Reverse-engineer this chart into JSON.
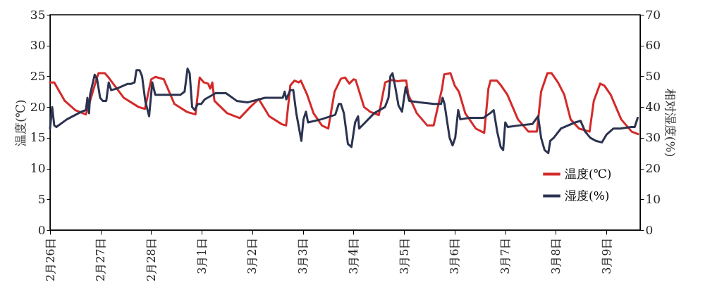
{
  "chart_data": {
    "type": "line",
    "ylabel": "温度(℃)",
    "y2label": "相对湿度(%)",
    "xlim": [
      "--02-26T00:00",
      "--03-09T16:00"
    ],
    "ylim": [
      0,
      35
    ],
    "yticks": [
      0,
      5,
      10,
      15,
      20,
      25,
      30,
      35
    ],
    "y2lim": [
      0,
      70
    ],
    "y2ticks": [
      0,
      10,
      20,
      30,
      40,
      50,
      60,
      70
    ],
    "xticks": [
      {
        "value": "--02-26",
        "label": "2月26日"
      },
      {
        "value": "--02-27",
        "label": "2月27日"
      },
      {
        "value": "--02-28",
        "label": "2月28日"
      },
      {
        "value": "--03-01",
        "label": "3月1日"
      },
      {
        "value": "--03-02",
        "label": "3月2日"
      },
      {
        "value": "--03-03",
        "label": "3月3日"
      },
      {
        "value": "--03-04",
        "label": "3月4日"
      },
      {
        "value": "--03-05",
        "label": "3月5日"
      },
      {
        "value": "--03-06",
        "label": "3月6日"
      },
      {
        "value": "--03-07",
        "label": "3月7日"
      },
      {
        "value": "--03-08",
        "label": "3月8日"
      },
      {
        "value": "--03-09",
        "label": "3月9日"
      }
    ],
    "legend": "bottom right",
    "line_style": "solid",
    "series": [
      {
        "name": "温度(℃)",
        "color": "#d42a2a",
        "x": [
          "--02-26T00:00",
          "--02-26T02:00",
          "--02-26T07:00",
          "--02-26T12:00",
          "--02-26T17:00",
          "--02-26T19:00",
          "--02-26T22:00",
          "--02-26T23:00",
          "--02-27T02:00",
          "--02-27T04:00",
          "--02-27T11:00",
          "--02-27T18:00",
          "--02-27T21:00",
          "--02-28T00:00",
          "--02-28T02:00",
          "--02-28T06:00",
          "--02-28T11:00",
          "--02-28T17:00",
          "--02-28T21:00",
          "--02-28T23:00",
          "--03-01T01:00",
          "--03-01T03:00",
          "--03-01T04:00",
          "--03-01T05:00",
          "--03-01T06:00",
          "--03-01T12:00",
          "--03-01T18:00",
          "--03-01T23:00",
          "--03-02T03:00",
          "--03-02T08:00",
          "--03-02T14:00",
          "--03-02T16:00",
          "--03-02T18:00",
          "--03-02T20:00",
          "--03-02T22:00",
          "--03-02T23:00",
          "--03-03T02:00",
          "--03-03T05:00",
          "--03-03T09:00",
          "--03-03T12:00",
          "--03-03T15:00",
          "--03-03T18:00",
          "--03-03T20:00",
          "--03-03T22:00",
          "--03-04T00:00",
          "--03-04T01:00",
          "--03-04T05:00",
          "--03-04T08:00",
          "--03-04T12:00",
          "--03-04T15:00",
          "--03-04T18:00",
          "--03-04T21:00",
          "--03-04T23:00",
          "--03-05T01:00",
          "--03-05T02:00",
          "--03-05T06:00",
          "--03-05T11:00",
          "--03-05T14:00",
          "--03-05T18:00",
          "--03-05T19:00",
          "--03-05T22:00",
          "--03-06T00:00",
          "--03-06T02:00",
          "--03-06T05:00",
          "--03-06T10:00",
          "--03-06T14:00",
          "--03-06T16:00",
          "--03-06T17:00",
          "--03-06T20:00",
          "--03-06T22:00",
          "--03-07T01:00",
          "--03-07T06:00",
          "--03-07T11:00",
          "--03-07T15:00",
          "--03-07T17:00",
          "--03-07T20:00",
          "--03-07T22:00",
          "--03-08T01:00",
          "--03-08T04:00",
          "--03-08T07:00",
          "--03-08T11:00",
          "--03-08T16:00",
          "--03-08T18:00",
          "--03-08T21:00",
          "--03-08T23:00",
          "--03-09T02:00",
          "--03-09T07:00",
          "--03-09T12:00",
          "--03-09T15:00"
        ],
        "values": [
          24,
          24,
          21,
          19.5,
          18.8,
          21,
          24.5,
          25.5,
          25.5,
          24.7,
          21.5,
          20,
          19.7,
          24.5,
          24.9,
          24.5,
          20.5,
          19.2,
          18.8,
          24.8,
          24,
          23.8,
          23,
          24,
          21,
          19,
          18.2,
          20,
          21.3,
          18.5,
          17.2,
          17,
          23.5,
          24.3,
          24,
          24.3,
          22,
          19,
          17,
          16.5,
          22.5,
          24.6,
          24.8,
          23.8,
          24.5,
          24.4,
          20,
          19.2,
          18.7,
          24,
          24.4,
          24.2,
          24.3,
          24.3,
          22,
          19,
          17,
          17,
          23,
          25.3,
          25.5,
          23.5,
          22.5,
          19,
          16.5,
          15.8,
          23,
          24.3,
          24.3,
          23.5,
          22,
          18,
          16,
          16,
          22.5,
          25.5,
          25.5,
          24,
          22,
          18,
          16.5,
          16,
          21,
          23.8,
          23.5,
          22,
          18,
          16,
          15.6
        ]
      },
      {
        "name": "湿度(%)",
        "color": "#2b3350",
        "axis": "y2",
        "x": [
          "--02-26T00:00",
          "--02-26T01:00",
          "--02-26T02:00",
          "--02-26T03:00",
          "--02-26T08:00",
          "--02-26T15:00",
          "--02-26T17:00",
          "--02-26T17:45",
          "--02-26T18:30",
          "--02-26T19:00",
          "--02-26T21:10",
          "--02-26T22:20",
          "--02-26T23:45",
          "--02-27T01:00",
          "--02-27T02:40",
          "--02-27T03:50",
          "--02-27T05:00",
          "--02-27T07:40",
          "--02-27T12:40",
          "--02-27T14:20",
          "--02-27T16:05",
          "--02-27T17:00",
          "--02-27T18:30",
          "--02-27T19:40",
          "--02-27T21:10",
          "--02-27T23:00",
          "--02-28T00:30",
          "--02-28T01:55",
          "--02-28T07:10",
          "--02-28T13:55",
          "--02-28T15:50",
          "--02-28T17:15",
          "--02-28T18:15",
          "--02-28T19:25",
          "--02-28T20:40",
          "--02-28T22:05",
          "--02-28T23:45",
          "--03-01T01:25",
          "--03-01T06:30",
          "--03-01T11:30",
          "--03-01T16:35",
          "--03-01T21:35",
          "--03-02T06:00",
          "--03-02T14:25",
          "--03-02T15:20",
          "--03-02T16:05",
          "--03-02T18:00",
          "--03-02T19:25",
          "--03-02T20:50",
          "--03-02T23:15",
          "--03-03T00:15",
          "--03-03T01:25",
          "--03-03T02:25",
          "--03-03T08:40",
          "--03-03T15:20",
          "--03-03T17:00",
          "--03-03T18:00",
          "--03-03T19:25",
          "--03-03T21:20",
          "--03-03T23:00",
          "--03-04T00:45",
          "--03-04T02:10",
          "--03-04T02:40",
          "--03-04T04:50",
          "--03-04T09:50",
          "--03-04T14:55",
          "--03-04T16:35",
          "--03-04T17:30",
          "--03-04T18:30",
          "--03-04T19:40",
          "--03-04T21:20",
          "--03-04T23:00",
          "--03-05T00:45",
          "--03-05T02:25",
          "--03-05T07:25",
          "--03-05T14:10",
          "--03-05T17:30",
          "--03-05T18:15",
          "--03-05T19:10",
          "--03-05T21:35",
          "--03-05T23:00",
          "--03-06T00:15",
          "--03-06T01:40",
          "--03-06T02:40",
          "--03-06T06:55",
          "--03-06T13:40",
          "--03-06T16:50",
          "--03-06T18:30",
          "--03-06T20:10",
          "--03-06T21:50",
          "--03-06T23:00",
          "--03-07T00:00",
          "--03-07T01:10",
          "--03-07T06:15",
          "--03-07T12:55",
          "--03-07T15:35",
          "--03-07T17:00",
          "--03-07T18:40",
          "--03-07T20:25",
          "--03-07T21:20",
          "--03-07T23:00",
          "--03-08T02:25",
          "--03-08T09:10",
          "--03-08T11:45",
          "--03-08T13:55",
          "--03-08T16:20",
          "--03-08T19:00",
          "--03-08T21:50",
          "--03-09T00:00",
          "--03-09T03:20",
          "--03-09T06:40",
          "--03-09T11:45",
          "--03-09T13:25",
          "--03-09T14:50"
        ],
        "values": [
          33,
          40,
          34,
          33.5,
          36,
          38.5,
          39,
          43,
          38,
          44,
          50.5,
          49,
          43,
          42,
          42,
          48,
          45.5,
          46,
          47.5,
          47.5,
          48,
          52,
          52,
          50,
          42,
          37,
          48,
          44,
          44,
          44,
          45,
          52.5,
          51,
          40,
          39,
          41,
          41,
          42.5,
          44.5,
          44.5,
          42,
          41.5,
          43,
          43,
          45,
          42.5,
          45.5,
          45.5,
          38,
          29,
          36,
          38.5,
          35,
          36,
          37.5,
          41,
          41,
          38,
          28,
          27,
          35,
          37,
          33,
          34.5,
          38,
          40,
          43,
          50,
          51,
          47,
          40.5,
          38.5,
          46.5,
          42,
          41.5,
          41,
          41,
          43,
          41,
          30,
          27.5,
          30,
          39,
          36,
          36.5,
          36.5,
          38,
          39,
          32,
          27,
          26,
          35,
          33.5,
          34,
          34.5,
          37,
          30,
          26,
          25,
          29,
          30,
          33,
          35,
          35.5,
          32,
          30,
          29,
          28.5,
          31,
          33,
          33,
          33.5,
          33.5,
          36.5
        ]
      }
    ]
  }
}
